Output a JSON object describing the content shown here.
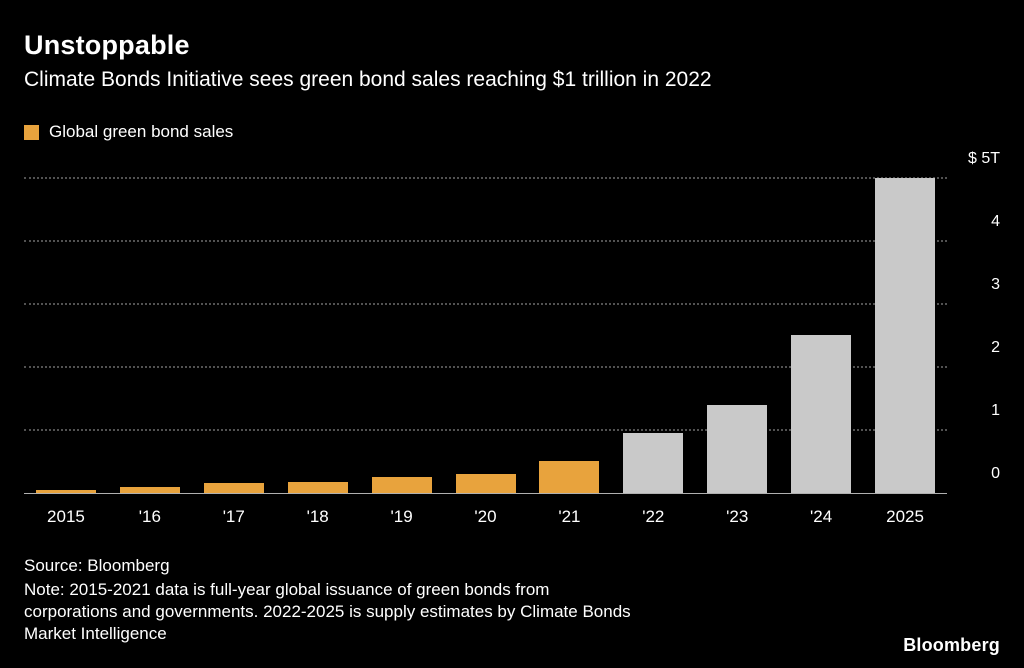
{
  "header": {
    "title": "Unstoppable",
    "subtitle": "Climate Bonds Initiative sees green bond sales reaching $1 trillion in 2022"
  },
  "legend": {
    "label": "Global green bond sales",
    "swatch_color": "#E8A33D"
  },
  "chart_data": {
    "type": "bar",
    "title": "Unstoppable",
    "subtitle": "Climate Bonds Initiative sees green bond sales reaching $1 trillion in 2022",
    "series_name": "Global green bond sales",
    "unit": "USD trillions",
    "categories": [
      "2015",
      "'16",
      "'17",
      "'18",
      "'19",
      "'20",
      "'21",
      "'22",
      "'23",
      "'24",
      "2025"
    ],
    "values": [
      0.05,
      0.09,
      0.16,
      0.17,
      0.26,
      0.3,
      0.5,
      0.95,
      1.4,
      2.5,
      5.0
    ],
    "bar_types": [
      "actual",
      "actual",
      "actual",
      "actual",
      "actual",
      "actual",
      "actual",
      "estimate",
      "estimate",
      "estimate",
      "estimate"
    ],
    "colors": {
      "actual": "#E8A33D",
      "estimate": "#C9C9C9"
    },
    "ylim": [
      0,
      5
    ],
    "y_ticks": [
      {
        "value": 5,
        "label": "$ 5T"
      },
      {
        "value": 4,
        "label": "4"
      },
      {
        "value": 3,
        "label": "3"
      },
      {
        "value": 2,
        "label": "2"
      },
      {
        "value": 1,
        "label": "1"
      },
      {
        "value": 0,
        "label": "0"
      }
    ],
    "grid": "dotted-horizontal",
    "legend_position": "top-left",
    "y_axis_side": "right"
  },
  "footer": {
    "source": "Source: Bloomberg",
    "note_lines": [
      "Note: 2015-2021 data is full-year global issuance of green bonds from",
      "corporations and governments. 2022-2025 is supply estimates by Climate Bonds",
      "Market Intelligence"
    ],
    "logo": "Bloomberg"
  }
}
